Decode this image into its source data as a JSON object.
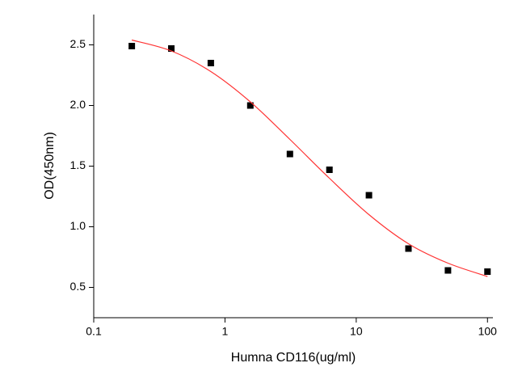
{
  "chart_data": {
    "type": "scatter",
    "x_label": "Humna CD116(ug/ml)",
    "y_label": "OD(450nm)",
    "xscale": "log",
    "xlim": [
      0.1,
      110
    ],
    "ylim": [
      0.25,
      2.75
    ],
    "xticks": [
      0.1,
      1,
      10,
      100
    ],
    "yticks": [
      0.5,
      {
        "value": 1,
        "label": "1.0"
      },
      1.5,
      {
        "value": 2,
        "label": "2.0"
      },
      2.5
    ],
    "series": [
      {
        "type": "scatter",
        "color": "#000000",
        "x": [
          0.195,
          0.39,
          0.78,
          1.56,
          3.125,
          6.25,
          12.5,
          25,
          50,
          100
        ],
        "values": [
          2.49,
          2.47,
          2.35,
          2.0,
          1.6,
          1.47,
          1.26,
          0.82,
          0.64,
          0.63
        ]
      },
      {
        "type": "line",
        "color": "#ff3333",
        "x": [
          0.195,
          0.39,
          0.78,
          1.56,
          3.125,
          6.25,
          12.5,
          25,
          50,
          100
        ],
        "values": [
          2.54,
          2.45,
          2.28,
          2.03,
          1.72,
          1.4,
          1.1,
          0.86,
          0.7,
          0.59
        ]
      }
    ]
  }
}
